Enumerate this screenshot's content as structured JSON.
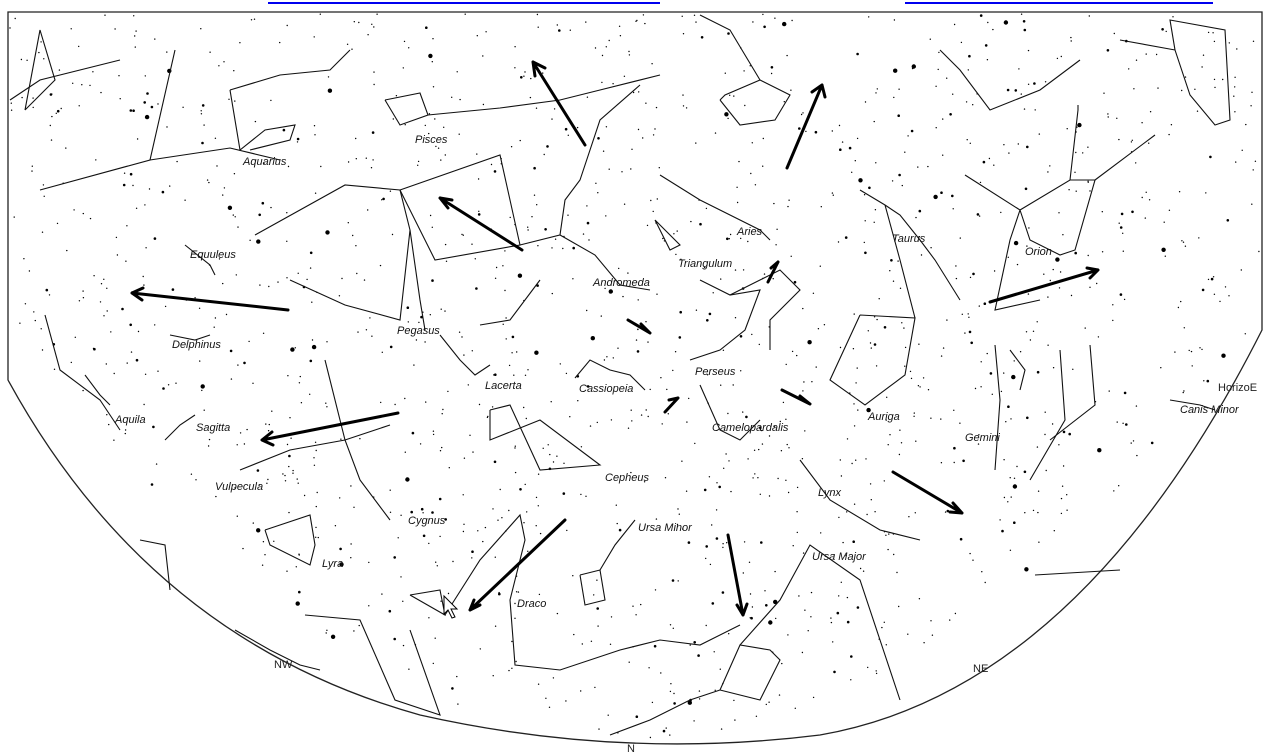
{
  "map": {
    "horizon_label": "HorizoE",
    "directions": {
      "nw": "NW",
      "north": "N",
      "ne": "NE"
    },
    "constellations": {
      "pisces": "Pisces",
      "aquarius": "Aquarius",
      "equuleus": "Equuleus",
      "delphinus": "Delphinus",
      "pegasus": "Pegasus",
      "lacerta": "Lacerta",
      "aquila": "Aquila",
      "sagitta": "Sagitta",
      "vulpecula": "Vulpecula",
      "cygnus": "Cygnus",
      "lyra": "Lyra",
      "draco": "Draco",
      "andromeda": "Andromeda",
      "triangulum": "Triangulum",
      "aries": "Aries",
      "taurus": "Taurus",
      "orion": "Orion",
      "perseus": "Perseus",
      "cassiopeia": "Cassiopeia",
      "camelopardalis": "Camelopardalis",
      "cepheus": "Cepheus",
      "ursa_minor": "Ursa Minor",
      "ursa_major": "Ursa Major",
      "lynx": "Lynx",
      "auriga": "Auriga",
      "gemini": "Gemini",
      "canis_minor": "Canis Minor"
    },
    "colors": {
      "background": "#ffffff",
      "ink": "#111111",
      "link": "#0000ee"
    }
  }
}
